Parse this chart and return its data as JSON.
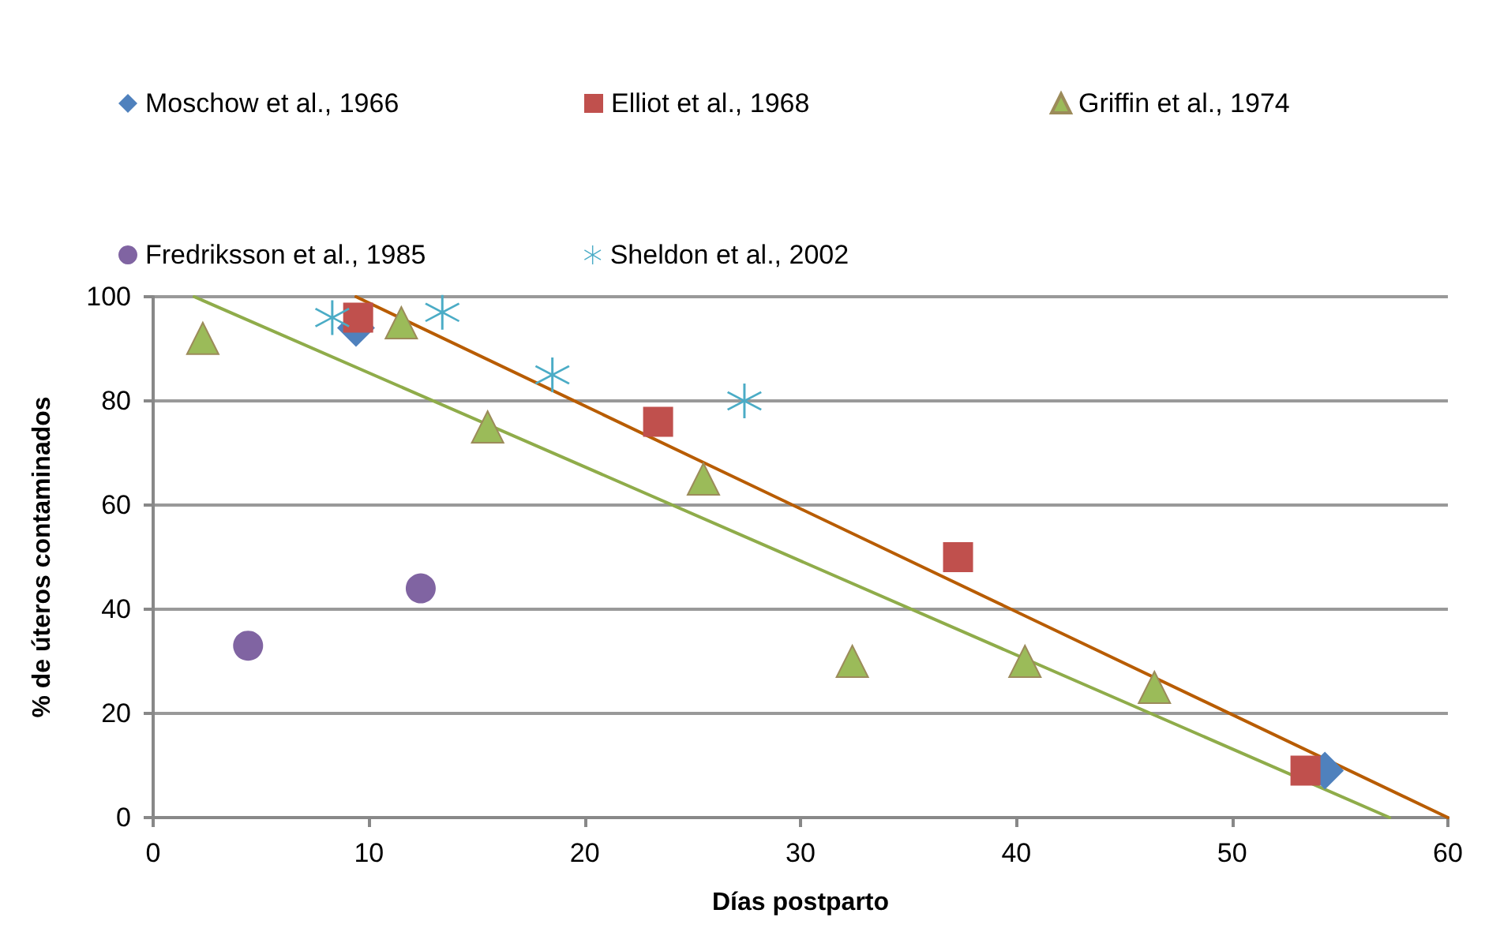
{
  "chart_data": {
    "type": "scatter",
    "xlabel": "Días postparto",
    "ylabel": "% de úteros contaminados",
    "xlim": [
      0,
      60
    ],
    "xticks": [
      0,
      10,
      20,
      30,
      40,
      50,
      60
    ],
    "ylim": [
      0,
      100
    ],
    "yticks": [
      0,
      20,
      40,
      60,
      80,
      100
    ],
    "grid": "y",
    "legend": "top",
    "series": [
      {
        "name": "Moschow et al., 1966",
        "color": "#4f81bd",
        "marker": "diamond",
        "x": [
          9.4,
          54.3
        ],
        "values": [
          94,
          9
        ]
      },
      {
        "name": "Elliot et al., 1968",
        "color": "#c0504d",
        "marker": "square",
        "x": [
          9.5,
          23.4,
          37.3,
          53.4
        ],
        "values": [
          96,
          76,
          50,
          9
        ]
      },
      {
        "name": "Griffin et al., 1974",
        "color": "#9bbb59",
        "marker": "triangle",
        "x": [
          2.3,
          11.5,
          15.5,
          25.5,
          32.4,
          40.4,
          46.4
        ],
        "values": [
          92,
          95,
          75,
          65,
          30,
          30,
          25
        ]
      },
      {
        "name": "Fredriksson et al., 1985",
        "color": "#8064a2",
        "marker": "circle",
        "x": [
          4.4,
          12.4
        ],
        "values": [
          33,
          44
        ]
      },
      {
        "name": "Sheldon et al., 2002",
        "color": "#4bacc6",
        "marker": "cross",
        "x": [
          8.3,
          13.4,
          18.5,
          27.4
        ],
        "values": [
          96,
          97,
          85,
          80
        ]
      },
      {
        "type": "line",
        "color": "#b85c00",
        "marker": "none",
        "x": [
          9.4,
          60
        ],
        "values": [
          100,
          0
        ]
      },
      {
        "type": "line",
        "color": "#8fac4a",
        "marker": "none",
        "x": [
          1.9,
          57.3
        ],
        "values": [
          100,
          0
        ]
      }
    ]
  }
}
